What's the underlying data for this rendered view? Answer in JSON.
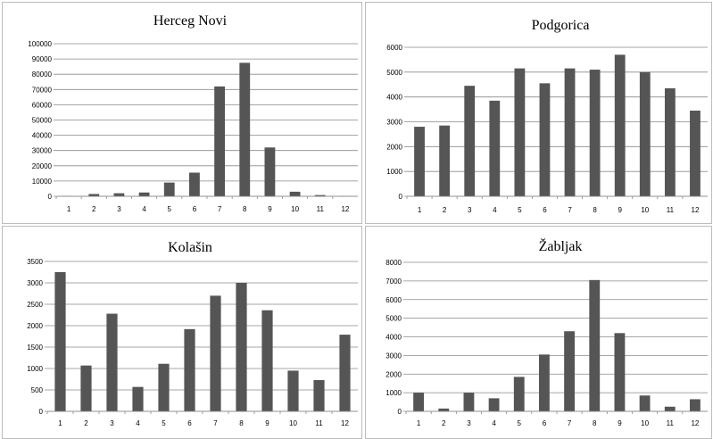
{
  "colors": {
    "bar": "#555555",
    "grid": "#8a8a8a",
    "border": "#bdbdbd"
  },
  "chart_data": [
    {
      "type": "bar",
      "title": "Herceg Novi",
      "categories": [
        "1",
        "2",
        "3",
        "4",
        "5",
        "6",
        "7",
        "8",
        "9",
        "10",
        "11",
        "12"
      ],
      "values": [
        200,
        1500,
        2000,
        2500,
        9000,
        15500,
        72000,
        87500,
        32000,
        3000,
        800,
        200
      ],
      "ylim": [
        0,
        100000
      ],
      "yticks": [
        "0",
        "10000",
        "20000",
        "30000",
        "40000",
        "50000",
        "60000",
        "70000",
        "80000",
        "90000",
        "100000"
      ],
      "grid": true
    },
    {
      "type": "bar",
      "title": "Podgorica",
      "categories": [
        "1",
        "2",
        "3",
        "4",
        "5",
        "6",
        "7",
        "8",
        "9",
        "10",
        "11",
        "12"
      ],
      "values": [
        2800,
        2850,
        4450,
        3850,
        5150,
        4550,
        5150,
        5100,
        5700,
        5000,
        4350,
        3450
      ],
      "ylim": [
        0,
        6000
      ],
      "yticks": [
        "0",
        "1000",
        "2000",
        "3000",
        "4000",
        "5000",
        "6000"
      ],
      "grid": true
    },
    {
      "type": "bar",
      "title": "Kolašin",
      "categories": [
        "1",
        "2",
        "3",
        "4",
        "5",
        "6",
        "7",
        "8",
        "9",
        "10",
        "11",
        "12"
      ],
      "values": [
        3250,
        1070,
        2280,
        570,
        1110,
        1920,
        2700,
        3000,
        2360,
        950,
        730,
        1790
      ],
      "ylim": [
        0,
        3500
      ],
      "yticks": [
        "0",
        "500",
        "1000",
        "1500",
        "2000",
        "2500",
        "3000",
        "3500"
      ],
      "grid": true
    },
    {
      "type": "bar",
      "title": "Žabljak",
      "categories": [
        "1",
        "2",
        "3",
        "4",
        "5",
        "6",
        "7",
        "8",
        "9",
        "10",
        "11",
        "12"
      ],
      "values": [
        1000,
        150,
        1000,
        700,
        1850,
        3050,
        4300,
        7050,
        4200,
        850,
        250,
        650
      ],
      "ylim": [
        0,
        8000
      ],
      "yticks": [
        "0",
        "1000",
        "2000",
        "3000",
        "4000",
        "5000",
        "6000",
        "7000",
        "8000"
      ],
      "grid": true
    }
  ]
}
